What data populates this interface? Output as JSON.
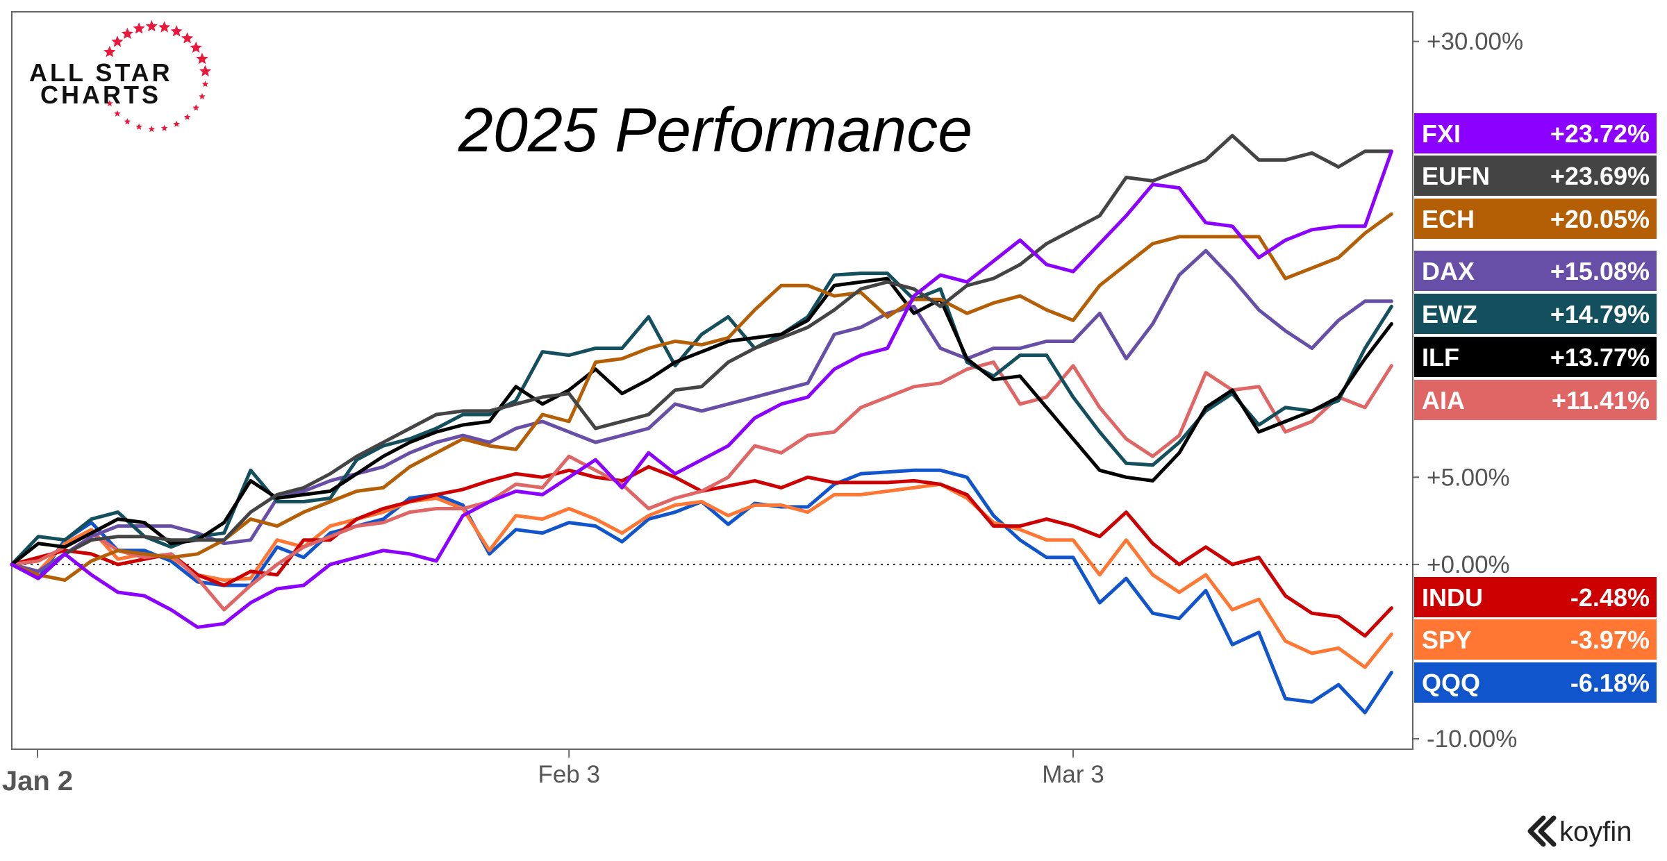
{
  "logo": {
    "line1": "ALL STAR",
    "line2": "CHARTS"
  },
  "brand": {
    "name": "koyfin",
    "icon": "koyfin-chevron-icon"
  },
  "chart_data": {
    "type": "line",
    "title": "2025 Performance",
    "x_ticks": [
      {
        "label": "Jan 2",
        "index": 0,
        "bold": true
      },
      {
        "label": "Feb 3",
        "index": 21,
        "bold": false
      },
      {
        "label": "Mar 3",
        "index": 40,
        "bold": false
      }
    ],
    "y_ticks": [
      {
        "label": "+30.00%",
        "value": 30
      },
      {
        "label": "+5.00%",
        "value": 5
      },
      {
        "label": "+0.00%",
        "value": 0
      },
      {
        "label": "-10.00%",
        "value": -10
      }
    ],
    "ylim": [
      -10.6,
      31.7
    ],
    "zero_line": true,
    "series": [
      {
        "name": "QQQ",
        "label": "-6.18%",
        "color": "#1155cc",
        "values": [
          0,
          -0.8,
          1.4,
          2.4,
          0.8,
          0.8,
          0.2,
          -1.0,
          -1.2,
          -1.2,
          1.0,
          0.4,
          1.8,
          2.2,
          2.6,
          3.8,
          4.0,
          3.4,
          0.6,
          2.0,
          1.8,
          2.4,
          2.2,
          1.3,
          2.6,
          3.0,
          3.6,
          2.3,
          3.5,
          3.3,
          3.3,
          4.6,
          5.2,
          5.3,
          5.4,
          5.4,
          5.0,
          2.8,
          1.4,
          0.4,
          0.4,
          -2.2,
          -0.8,
          -2.8,
          -3.1,
          -1.5,
          -4.6,
          -3.9,
          -7.7,
          -7.9,
          -6.9,
          -8.5,
          -6.2
        ]
      },
      {
        "name": "SPY",
        "label": "-3.97%",
        "color": "#ff7733",
        "values": [
          0,
          -0.4,
          1.2,
          2.0,
          0.3,
          0.6,
          0.4,
          -0.6,
          -0.9,
          -0.8,
          1.4,
          1.0,
          2.2,
          2.6,
          3.0,
          3.6,
          3.8,
          3.2,
          0.8,
          2.8,
          2.6,
          3.2,
          2.6,
          1.8,
          2.8,
          3.4,
          3.6,
          2.8,
          3.4,
          3.4,
          3.0,
          4.0,
          4.0,
          4.2,
          4.4,
          4.6,
          3.8,
          2.4,
          2.0,
          1.4,
          1.4,
          -0.6,
          1.4,
          -0.6,
          -1.6,
          -0.6,
          -2.6,
          -2.0,
          -4.4,
          -5.1,
          -4.8,
          -5.9,
          -4.0
        ]
      },
      {
        "name": "INDU",
        "label": "-2.48%",
        "color": "#cc0000",
        "values": [
          0,
          0.4,
          0.8,
          0.6,
          0.0,
          0.3,
          0.6,
          -0.6,
          -1.2,
          -0.4,
          -0.6,
          1.4,
          1.4,
          2.6,
          3.2,
          3.6,
          4.0,
          4.3,
          4.8,
          5.2,
          5.0,
          5.4,
          5.0,
          4.8,
          5.6,
          5.0,
          4.2,
          4.5,
          4.8,
          4.4,
          5.0,
          4.7,
          4.7,
          4.7,
          4.8,
          4.6,
          4.0,
          2.2,
          2.2,
          2.6,
          2.2,
          1.6,
          3.0,
          1.2,
          0.0,
          1.0,
          0.0,
          0.4,
          -1.8,
          -2.8,
          -3.0,
          -4.1,
          -2.5
        ]
      },
      {
        "name": "AIA",
        "label": "+11.41%",
        "color": "#e06666",
        "values": [
          0,
          0.2,
          1.0,
          1.8,
          0.8,
          0.4,
          0.6,
          -0.8,
          -2.6,
          -1.2,
          0.0,
          1.0,
          1.6,
          2.2,
          2.4,
          3.0,
          3.2,
          3.2,
          3.6,
          4.6,
          4.4,
          6.2,
          5.4,
          4.6,
          3.2,
          3.8,
          4.2,
          5.0,
          6.8,
          6.4,
          7.4,
          7.6,
          9.0,
          9.6,
          10.2,
          10.4,
          11.2,
          11.6,
          9.2,
          9.6,
          11.4,
          9.0,
          7.2,
          6.2,
          7.4,
          11.0,
          10.0,
          10.2,
          7.6,
          8.2,
          9.6,
          9.0,
          11.4
        ]
      },
      {
        "name": "DAX",
        "label": "+15.08%",
        "color": "#674ea7",
        "values": [
          0,
          -0.4,
          0.6,
          1.6,
          2.2,
          2.2,
          2.2,
          1.8,
          1.2,
          1.4,
          3.8,
          4.2,
          4.8,
          5.2,
          5.6,
          6.4,
          7.0,
          7.4,
          7.0,
          7.8,
          8.2,
          7.6,
          7.0,
          7.4,
          7.8,
          9.2,
          8.8,
          9.2,
          9.6,
          10.0,
          10.4,
          13.2,
          13.6,
          14.4,
          14.8,
          12.4,
          11.8,
          12.4,
          12.4,
          12.8,
          12.8,
          14.4,
          11.8,
          13.8,
          16.6,
          18.0,
          16.4,
          14.6,
          13.4,
          12.4,
          14.0,
          15.1,
          15.1
        ]
      },
      {
        "name": "EWZ",
        "label": "+14.79%",
        "color": "#134f5c",
        "values": [
          0,
          1.6,
          1.4,
          2.6,
          3.0,
          1.6,
          1.0,
          1.6,
          1.8,
          5.4,
          3.6,
          3.6,
          3.8,
          6.0,
          6.8,
          7.2,
          7.8,
          8.6,
          8.6,
          9.4,
          12.2,
          12.0,
          12.4,
          12.4,
          14.2,
          11.4,
          13.2,
          14.2,
          12.4,
          13.2,
          14.2,
          16.6,
          16.7,
          16.7,
          15.2,
          15.8,
          11.6,
          10.8,
          12.0,
          12.0,
          9.6,
          7.6,
          5.8,
          5.7,
          7.0,
          8.8,
          9.8,
          8.0,
          9.0,
          8.8,
          9.4,
          12.4,
          14.8
        ]
      },
      {
        "name": "ILF",
        "label": "+13.77%",
        "color": "#000000",
        "values": [
          0,
          1.2,
          1.0,
          1.8,
          2.6,
          2.4,
          1.2,
          1.4,
          2.4,
          4.8,
          3.8,
          4.0,
          4.2,
          5.2,
          6.2,
          7.0,
          7.6,
          8.0,
          8.2,
          10.2,
          9.2,
          10.0,
          11.2,
          9.8,
          10.6,
          11.6,
          12.2,
          12.8,
          13.0,
          13.2,
          14.0,
          16.0,
          16.2,
          16.4,
          14.4,
          15.2,
          11.8,
          10.6,
          10.8,
          9.0,
          7.2,
          5.4,
          5.0,
          4.8,
          6.4,
          9.0,
          10.0,
          7.6,
          8.2,
          8.8,
          9.6,
          11.8,
          13.8
        ]
      },
      {
        "name": "ECH",
        "label": "+20.05%",
        "color": "#b45f06",
        "values": [
          0,
          -0.6,
          -0.9,
          0.2,
          0.8,
          0.6,
          0.4,
          0.6,
          1.4,
          2.6,
          2.2,
          3.0,
          3.6,
          4.2,
          4.4,
          5.6,
          6.4,
          7.2,
          6.8,
          6.6,
          8.6,
          8.2,
          11.6,
          11.8,
          12.4,
          12.8,
          12.6,
          13.0,
          14.6,
          16.0,
          16.0,
          15.4,
          15.6,
          14.2,
          15.2,
          15.2,
          14.4,
          15.0,
          15.4,
          14.6,
          14.0,
          16.0,
          17.2,
          18.4,
          18.8,
          18.8,
          18.8,
          18.8,
          16.4,
          17.0,
          17.6,
          19.0,
          20.1
        ]
      },
      {
        "name": "EUFN",
        "label": "+23.69%",
        "color": "#444444",
        "values": [
          0,
          -0.8,
          0.6,
          1.4,
          1.6,
          1.6,
          1.4,
          1.4,
          1.4,
          3.0,
          4.0,
          4.4,
          5.2,
          6.2,
          7.0,
          7.8,
          8.6,
          8.8,
          8.8,
          9.2,
          9.6,
          9.8,
          7.8,
          8.2,
          8.6,
          10.0,
          10.2,
          11.6,
          12.4,
          13.0,
          13.6,
          14.6,
          15.8,
          16.2,
          15.8,
          14.8,
          16.0,
          16.4,
          17.2,
          18.4,
          19.2,
          20.0,
          22.2,
          22.0,
          22.6,
          23.2,
          24.6,
          23.2,
          23.2,
          23.6,
          22.8,
          23.7,
          23.7
        ]
      },
      {
        "name": "FXI",
        "label": "+23.72%",
        "color": "#8b00ff",
        "values": [
          0,
          -0.8,
          0.6,
          -0.6,
          -1.6,
          -1.8,
          -2.6,
          -3.6,
          -3.4,
          -2.2,
          -1.4,
          -1.2,
          0.0,
          0.4,
          0.8,
          0.6,
          0.2,
          2.8,
          3.6,
          4.2,
          4.0,
          5.0,
          6.0,
          4.4,
          6.4,
          5.2,
          6.0,
          6.8,
          8.4,
          9.2,
          9.6,
          11.2,
          12.0,
          12.4,
          15.4,
          16.6,
          16.2,
          17.4,
          18.6,
          17.2,
          16.8,
          18.4,
          20.0,
          21.8,
          21.6,
          19.6,
          19.4,
          17.6,
          18.6,
          19.2,
          19.4,
          19.4,
          23.7
        ]
      }
    ],
    "tags": [
      {
        "ticker": "FXI",
        "value": "+23.72%",
        "color": "#8b00ff"
      },
      {
        "ticker": "EUFN",
        "value": "+23.69%",
        "color": "#444444"
      },
      {
        "ticker": "ECH",
        "value": "+20.05%",
        "color": "#b45f06"
      },
      {
        "ticker": "DAX",
        "value": "+15.08%",
        "color": "#674ea7"
      },
      {
        "ticker": "EWZ",
        "value": "+14.79%",
        "color": "#134f5c"
      },
      {
        "ticker": "ILF",
        "value": "+13.77%",
        "color": "#000000"
      },
      {
        "ticker": "AIA",
        "value": "+11.41%",
        "color": "#e06666"
      },
      {
        "ticker": "INDU",
        "value": "-2.48%",
        "color": "#cc0000"
      },
      {
        "ticker": "SPY",
        "value": "-3.97%",
        "color": "#ff7733"
      },
      {
        "ticker": "QQQ",
        "value": "-6.18%",
        "color": "#1155cc"
      }
    ]
  }
}
